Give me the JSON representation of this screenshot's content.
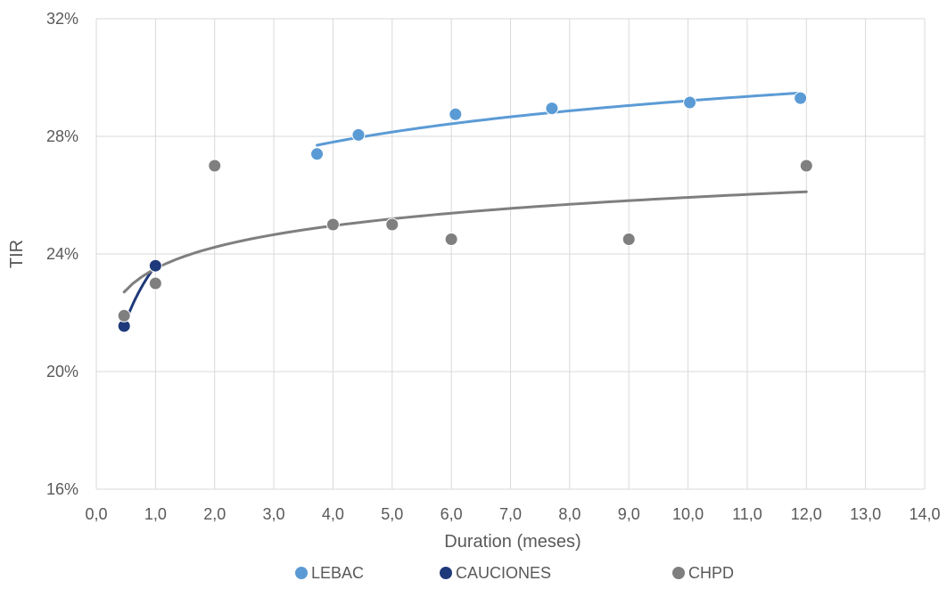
{
  "chart_data": {
    "type": "scatter",
    "title": "",
    "xlabel": "Duration (meses)",
    "ylabel": "TIR",
    "xlim": [
      0,
      14
    ],
    "ylim": [
      16,
      32
    ],
    "x_ticks": [
      "0,0",
      "1,0",
      "2,0",
      "3,0",
      "4,0",
      "5,0",
      "6,0",
      "7,0",
      "8,0",
      "9,0",
      "10,0",
      "11,0",
      "12,0",
      "13,0",
      "14,0"
    ],
    "y_ticks": [
      "16%",
      "20%",
      "24%",
      "28%",
      "32%"
    ],
    "grid": true,
    "legend_position": "bottom",
    "series": [
      {
        "name": "LEBAC",
        "color": "#5b9bd5",
        "points": [
          [
            3.73,
            27.4
          ],
          [
            4.43,
            28.05
          ],
          [
            6.07,
            28.75
          ],
          [
            7.7,
            28.95
          ],
          [
            10.03,
            29.15
          ],
          [
            11.9,
            29.3
          ]
        ],
        "trendline": "logarithmic"
      },
      {
        "name": "CAUCIONES",
        "color": "#1f3a7a",
        "points": [
          [
            0.47,
            21.55
          ],
          [
            1.0,
            23.6
          ]
        ],
        "trendline": "logarithmic"
      },
      {
        "name": "CHPD",
        "color": "#7f7f7f",
        "points": [
          [
            0.47,
            21.9
          ],
          [
            1.0,
            23.0
          ],
          [
            2.0,
            27.0
          ],
          [
            4.0,
            25.0
          ],
          [
            5.0,
            25.0
          ],
          [
            6.0,
            24.5
          ],
          [
            9.0,
            24.5
          ],
          [
            12.0,
            27.0
          ]
        ],
        "trendline": "logarithmic"
      }
    ]
  }
}
